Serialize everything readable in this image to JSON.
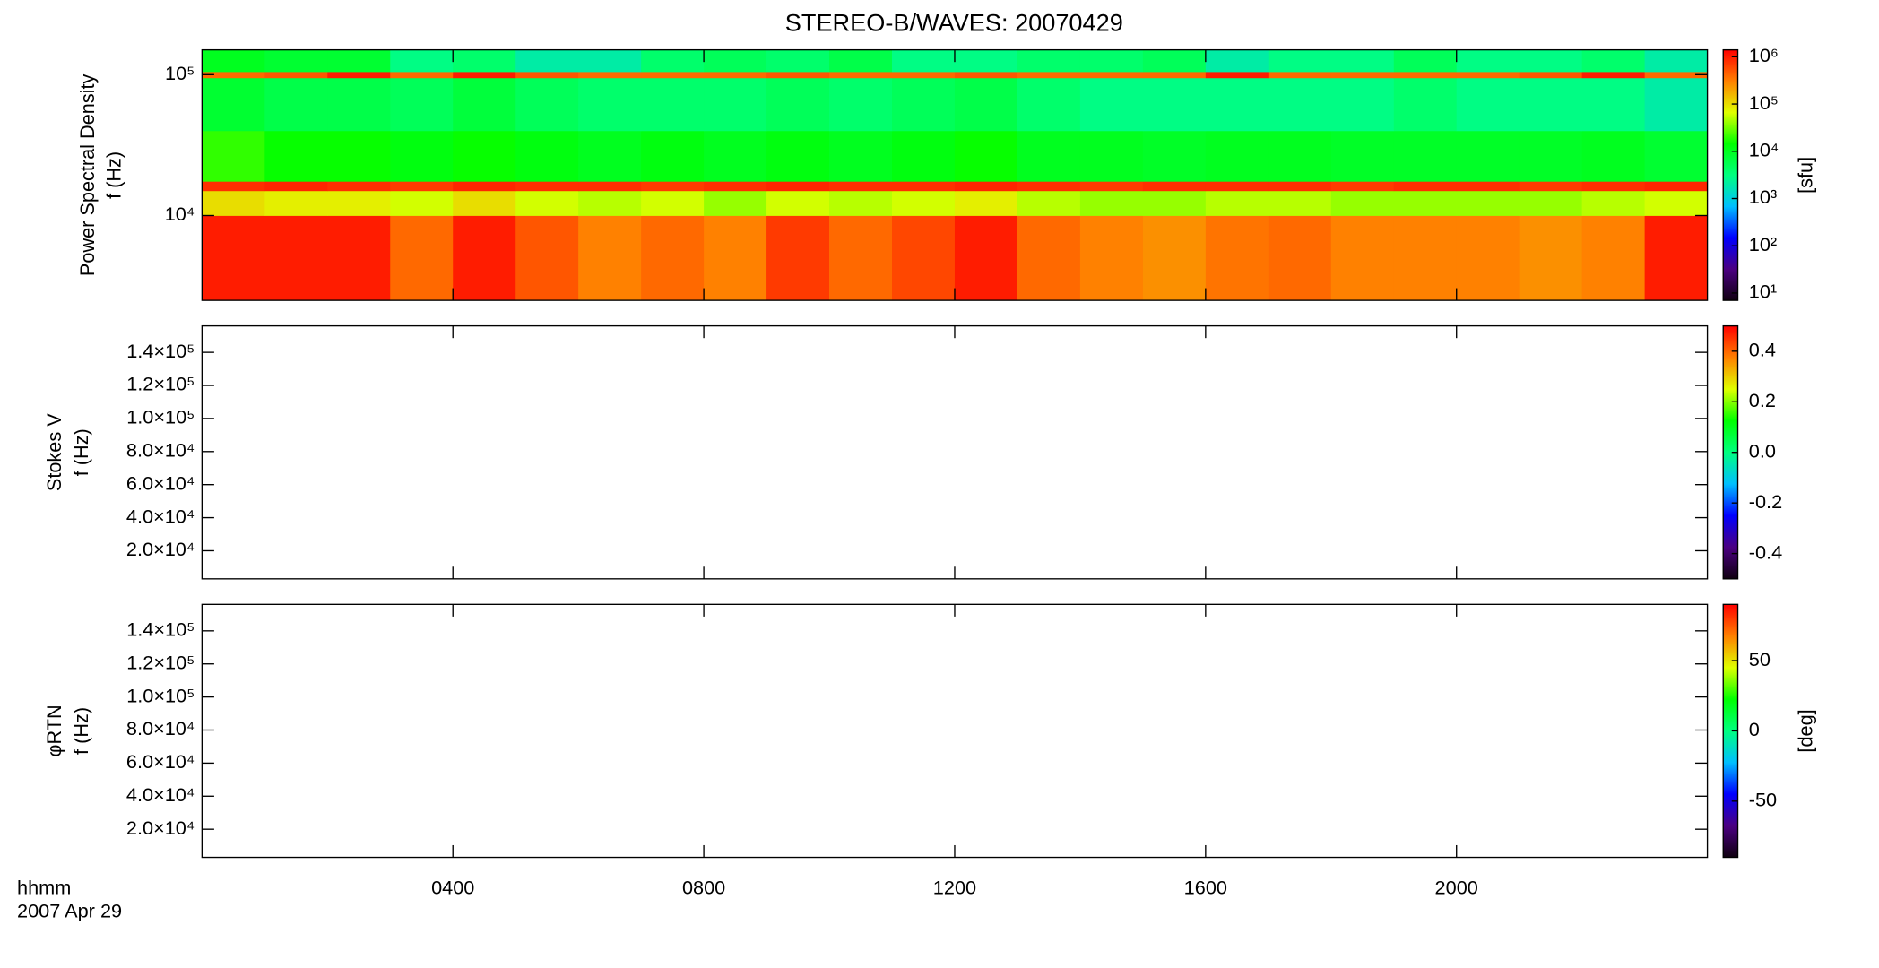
{
  "chart_data": [
    {
      "type": "heatmap",
      "title": "STEREO-B/WAVES: 20070429",
      "ylabel": [
        "Power Spectral Density",
        "f (Hz)"
      ],
      "log_y": true,
      "ylim": [
        2500,
        150000
      ],
      "yticks": [
        {
          "value": 10000,
          "label": "10⁴"
        },
        {
          "value": 100000,
          "label": "10⁵"
        }
      ],
      "xlim": [
        0,
        24
      ],
      "x_bins": [
        0,
        1,
        2,
        3,
        4,
        5,
        6,
        7,
        8,
        9,
        10,
        11,
        12,
        13,
        14,
        15,
        16,
        17,
        18,
        19,
        20,
        21,
        22,
        23,
        24
      ],
      "y_bins": [
        2500,
        10000,
        15000,
        17500,
        40000,
        95000,
        105000,
        150000
      ],
      "z": [
        [
          1000000,
          1000000,
          1000000,
          400000,
          1000000,
          500000,
          300000,
          400000,
          300000,
          700000,
          400000,
          600000,
          1000000,
          400000,
          300000,
          250000,
          350000,
          400000,
          300000,
          300000,
          300000,
          250000,
          300000,
          1000000
        ],
        [
          100000,
          80000,
          80000,
          60000,
          100000,
          60000,
          50000,
          60000,
          40000,
          60000,
          50000,
          60000,
          80000,
          50000,
          40000,
          40000,
          50000,
          50000,
          40000,
          40000,
          40000,
          40000,
          50000,
          60000
        ],
        [
          800000,
          900000,
          800000,
          700000,
          900000,
          800000,
          800000,
          700000,
          800000,
          900000,
          800000,
          800000,
          900000,
          800000,
          700000,
          800000,
          800000,
          800000,
          700000,
          800000,
          800000,
          700000,
          800000,
          900000
        ],
        [
          20000,
          15000,
          15000,
          12000,
          15000,
          12000,
          10000,
          12000,
          10000,
          12000,
          10000,
          12000,
          15000,
          10000,
          10000,
          9000,
          10000,
          10000,
          9000,
          9000,
          9000,
          9000,
          10000,
          8000
        ],
        [
          8000,
          6000,
          6000,
          5000,
          7000,
          5000,
          4000,
          4000,
          4000,
          5000,
          4000,
          5000,
          6000,
          4000,
          3000,
          3000,
          3000,
          3000,
          3000,
          4000,
          3000,
          3000,
          3000,
          2000
        ],
        [
          400000,
          500000,
          1000000,
          400000,
          1000000,
          500000,
          400000,
          400000,
          400000,
          500000,
          400000,
          400000,
          500000,
          400000,
          400000,
          400000,
          1000000,
          400000,
          400000,
          400000,
          400000,
          500000,
          1000000,
          400000
        ],
        [
          10000,
          8000,
          8000,
          3000,
          4000,
          2000,
          2000,
          4000,
          5000,
          4000,
          6000,
          3000,
          3000,
          4000,
          4000,
          5000,
          2000,
          3000,
          3000,
          5000,
          3000,
          3000,
          4000,
          2000
        ]
      ],
      "colormap": [
        "#100010",
        "#4b0082",
        "#0000ff",
        "#00bfff",
        "#00ff80",
        "#00ff00",
        "#e0ff00",
        "#ff8000",
        "#ff0000"
      ],
      "colorbar": {
        "label": "[sfu]",
        "log": true,
        "lim": [
          7,
          1400000
        ],
        "ticks": [
          {
            "value": 10,
            "label": "10¹"
          },
          {
            "value": 100,
            "label": "10²"
          },
          {
            "value": 1000,
            "label": "10³"
          },
          {
            "value": 10000,
            "label": "10⁴"
          },
          {
            "value": 100000,
            "label": "10⁵"
          },
          {
            "value": 1000000,
            "label": "10⁶"
          }
        ]
      }
    },
    {
      "type": "heatmap",
      "ylabel": [
        "Stokes V",
        "f (Hz)"
      ],
      "ylim": [
        3000,
        156000
      ],
      "yticks": [
        {
          "value": 20000,
          "label": "2.0×10⁴"
        },
        {
          "value": 40000,
          "label": "4.0×10⁴"
        },
        {
          "value": 60000,
          "label": "6.0×10⁴"
        },
        {
          "value": 80000,
          "label": "8.0×10⁴"
        },
        {
          "value": 100000,
          "label": "1.0×10⁵"
        },
        {
          "value": 120000,
          "label": "1.2×10⁵"
        },
        {
          "value": 140000,
          "label": "1.4×10⁵"
        }
      ],
      "xlim": [
        0,
        24
      ],
      "colorbar": {
        "log": false,
        "lim": [
          -0.5,
          0.5
        ],
        "ticks": [
          -0.4,
          -0.2,
          {
            "value": 0,
            "label": "0.0"
          },
          0.2,
          0.4
        ]
      }
    },
    {
      "type": "heatmap",
      "ylabel": [
        "φRTN",
        "f (Hz)"
      ],
      "ylim": [
        3000,
        156000
      ],
      "yticks": [
        {
          "value": 20000,
          "label": "2.0×10⁴"
        },
        {
          "value": 40000,
          "label": "4.0×10⁴"
        },
        {
          "value": 60000,
          "label": "6.0×10⁴"
        },
        {
          "value": 80000,
          "label": "8.0×10⁴"
        },
        {
          "value": 100000,
          "label": "1.0×10⁵"
        },
        {
          "value": 120000,
          "label": "1.2×10⁵"
        },
        {
          "value": 140000,
          "label": "1.4×10⁵"
        }
      ],
      "xlim": [
        0,
        24
      ],
      "xticks": [
        {
          "value": 4,
          "label": "0400"
        },
        {
          "value": 8,
          "label": "0800"
        },
        {
          "value": 12,
          "label": "1200"
        },
        {
          "value": 16,
          "label": "1600"
        },
        {
          "value": 20,
          "label": "2000"
        }
      ],
      "xlabel": "hhmm",
      "date_label": "2007 Apr 29",
      "colorbar": {
        "label": "[deg]",
        "log": false,
        "lim": [
          -90,
          90
        ],
        "ticks": [
          -50,
          0,
          50
        ]
      }
    }
  ]
}
